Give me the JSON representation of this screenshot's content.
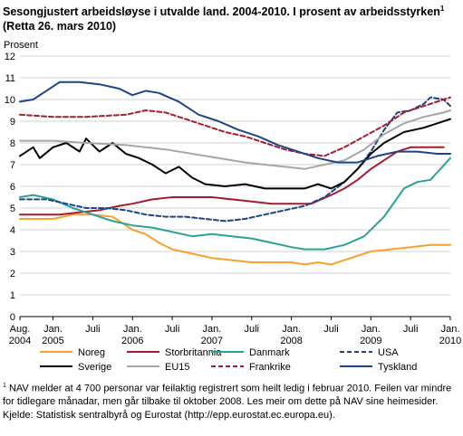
{
  "title": {
    "line1": "Sesongjustert arbeidsløyse i utvalde land. 2004-2010. I prosent av arbeidsstyrken",
    "footnote_mark": "1",
    "line2": "(Retta 26. mars 2010)"
  },
  "footnote": {
    "mark": "1",
    "text": "NAV melder at 4 700 personar var feilaktig registrert som heilt ledig i februar 2010. Feilen var mindre for tidlegare månadar, men går tilbake til oktober 2008. Les meir om dette på NAV sine heimesider."
  },
  "source": "Kjelde: Statistisk sentralbyrå og Eurostat (http://epp.eurostat.ec.europa.eu).",
  "colors": {
    "Noreg": "#f7a12a",
    "Sverige": "#000000",
    "Storbritannia": "#a51c30",
    "EU15": "#a6a6a6",
    "Danmark": "#2aa198",
    "Frankrike": "#a51c30",
    "USA": "#1c4587",
    "Tyskland": "#1c4587",
    "grid": "#d0d0d0",
    "axis": "#000000"
  },
  "chart_data": {
    "type": "line",
    "ylabel": "Prosent",
    "ylim": [
      0,
      12
    ],
    "yticks": [
      0,
      1,
      2,
      3,
      4,
      5,
      6,
      7,
      8,
      9,
      10,
      11,
      12
    ],
    "x_start": "2004-08",
    "x_end": "2010-01",
    "x_ticks": [
      {
        "line1": "Aug.",
        "line2": "2004",
        "x": "2004-08"
      },
      {
        "line1": "Jan.",
        "line2": "2005",
        "x": "2005-01"
      },
      {
        "line1": "Juli",
        "line2": "",
        "x": "2005-07"
      },
      {
        "line1": "Jan.",
        "line2": "2006",
        "x": "2006-01"
      },
      {
        "line1": "Juli",
        "line2": "",
        "x": "2006-07"
      },
      {
        "line1": "Jan.",
        "line2": "2007",
        "x": "2007-01"
      },
      {
        "line1": "Juli",
        "line2": "",
        "x": "2007-07"
      },
      {
        "line1": "Jan.",
        "line2": "2008",
        "x": "2008-01"
      },
      {
        "line1": "Juli",
        "line2": "",
        "x": "2008-07"
      },
      {
        "line1": "Jan.",
        "line2": "2009",
        "x": "2009-01"
      },
      {
        "line1": "Juli",
        "line2": "",
        "x": "2009-07"
      },
      {
        "line1": "Jan.",
        "line2": "2010",
        "x": "2010-01"
      }
    ],
    "grid": true,
    "legend_position": "bottom",
    "series": [
      {
        "name": "Noreg",
        "style": "solid",
        "color": "#f7a12a",
        "points": [
          [
            "2004-08",
            4.5
          ],
          [
            "2004-10",
            4.5
          ],
          [
            "2005-01",
            4.5
          ],
          [
            "2005-04",
            4.7
          ],
          [
            "2005-07",
            4.7
          ],
          [
            "2005-10",
            4.6
          ],
          [
            "2006-01",
            4.0
          ],
          [
            "2006-03",
            3.8
          ],
          [
            "2006-05",
            3.4
          ],
          [
            "2006-07",
            3.1
          ],
          [
            "2006-10",
            2.9
          ],
          [
            "2007-01",
            2.7
          ],
          [
            "2007-04",
            2.6
          ],
          [
            "2007-07",
            2.5
          ],
          [
            "2007-10",
            2.5
          ],
          [
            "2008-01",
            2.5
          ],
          [
            "2008-03",
            2.4
          ],
          [
            "2008-05",
            2.5
          ],
          [
            "2008-07",
            2.4
          ],
          [
            "2008-09",
            2.6
          ],
          [
            "2008-11",
            2.8
          ],
          [
            "2009-01",
            3.0
          ],
          [
            "2009-04",
            3.1
          ],
          [
            "2009-07",
            3.2
          ],
          [
            "2009-10",
            3.3
          ],
          [
            "2010-01",
            3.3
          ]
        ]
      },
      {
        "name": "Storbritannia",
        "style": "solid",
        "color": "#a51c30",
        "points": [
          [
            "2004-08",
            4.7
          ],
          [
            "2004-11",
            4.7
          ],
          [
            "2005-02",
            4.7
          ],
          [
            "2005-05",
            4.8
          ],
          [
            "2005-08",
            4.9
          ],
          [
            "2005-11",
            5.1
          ],
          [
            "2006-01",
            5.2
          ],
          [
            "2006-04",
            5.4
          ],
          [
            "2006-07",
            5.5
          ],
          [
            "2006-10",
            5.5
          ],
          [
            "2007-01",
            5.5
          ],
          [
            "2007-04",
            5.4
          ],
          [
            "2007-07",
            5.3
          ],
          [
            "2007-10",
            5.2
          ],
          [
            "2008-01",
            5.2
          ],
          [
            "2008-04",
            5.2
          ],
          [
            "2008-07",
            5.6
          ],
          [
            "2008-09",
            5.9
          ],
          [
            "2008-11",
            6.3
          ],
          [
            "2009-01",
            6.8
          ],
          [
            "2009-03",
            7.2
          ],
          [
            "2009-05",
            7.6
          ],
          [
            "2009-07",
            7.8
          ],
          [
            "2009-10",
            7.8
          ],
          [
            "2009-12",
            7.8
          ]
        ]
      },
      {
        "name": "Danmark",
        "style": "solid",
        "color": "#2aa198",
        "points": [
          [
            "2004-08",
            5.5
          ],
          [
            "2004-10",
            5.6
          ],
          [
            "2005-01",
            5.4
          ],
          [
            "2005-04",
            5.0
          ],
          [
            "2005-07",
            4.7
          ],
          [
            "2005-10",
            4.4
          ],
          [
            "2006-01",
            4.2
          ],
          [
            "2006-04",
            4.1
          ],
          [
            "2006-07",
            3.9
          ],
          [
            "2006-10",
            3.7
          ],
          [
            "2007-01",
            3.8
          ],
          [
            "2007-04",
            3.7
          ],
          [
            "2007-07",
            3.6
          ],
          [
            "2007-10",
            3.4
          ],
          [
            "2008-01",
            3.2
          ],
          [
            "2008-03",
            3.1
          ],
          [
            "2008-06",
            3.1
          ],
          [
            "2008-09",
            3.3
          ],
          [
            "2008-12",
            3.7
          ],
          [
            "2009-03",
            4.6
          ],
          [
            "2009-06",
            5.9
          ],
          [
            "2009-08",
            6.2
          ],
          [
            "2009-10",
            6.3
          ],
          [
            "2010-01",
            7.3
          ]
        ]
      },
      {
        "name": "USA",
        "style": "dashed",
        "color": "#1c4587",
        "points": [
          [
            "2004-08",
            5.4
          ],
          [
            "2004-12",
            5.4
          ],
          [
            "2005-03",
            5.2
          ],
          [
            "2005-06",
            5.0
          ],
          [
            "2005-09",
            5.0
          ],
          [
            "2005-12",
            4.9
          ],
          [
            "2006-03",
            4.7
          ],
          [
            "2006-06",
            4.6
          ],
          [
            "2006-09",
            4.6
          ],
          [
            "2006-12",
            4.5
          ],
          [
            "2007-03",
            4.4
          ],
          [
            "2007-06",
            4.5
          ],
          [
            "2007-09",
            4.7
          ],
          [
            "2007-12",
            4.9
          ],
          [
            "2008-03",
            5.1
          ],
          [
            "2008-06",
            5.5
          ],
          [
            "2008-09",
            6.2
          ],
          [
            "2008-11",
            6.8
          ],
          [
            "2009-01",
            7.6
          ],
          [
            "2009-03",
            8.6
          ],
          [
            "2009-05",
            9.4
          ],
          [
            "2009-07",
            9.5
          ],
          [
            "2009-09",
            9.8
          ],
          [
            "2009-10",
            10.1
          ],
          [
            "2009-12",
            10.0
          ],
          [
            "2010-01",
            9.7
          ]
        ]
      },
      {
        "name": "Sverige",
        "style": "solid",
        "color": "#000000",
        "points": [
          [
            "2004-08",
            7.4
          ],
          [
            "2004-10",
            7.8
          ],
          [
            "2004-11",
            7.3
          ],
          [
            "2005-01",
            7.8
          ],
          [
            "2005-03",
            8.0
          ],
          [
            "2005-05",
            7.6
          ],
          [
            "2005-06",
            8.2
          ],
          [
            "2005-08",
            7.6
          ],
          [
            "2005-10",
            8.0
          ],
          [
            "2005-12",
            7.5
          ],
          [
            "2006-02",
            7.3
          ],
          [
            "2006-04",
            7.0
          ],
          [
            "2006-06",
            6.6
          ],
          [
            "2006-08",
            6.9
          ],
          [
            "2006-10",
            6.4
          ],
          [
            "2006-12",
            6.1
          ],
          [
            "2007-03",
            6.0
          ],
          [
            "2007-06",
            6.1
          ],
          [
            "2007-09",
            5.9
          ],
          [
            "2007-12",
            5.9
          ],
          [
            "2008-03",
            5.9
          ],
          [
            "2008-05",
            6.1
          ],
          [
            "2008-07",
            5.9
          ],
          [
            "2008-09",
            6.2
          ],
          [
            "2008-11",
            6.8
          ],
          [
            "2009-01",
            7.5
          ],
          [
            "2009-03",
            8.0
          ],
          [
            "2009-06",
            8.5
          ],
          [
            "2009-09",
            8.7
          ],
          [
            "2009-11",
            8.9
          ],
          [
            "2010-01",
            9.1
          ]
        ]
      },
      {
        "name": "EU15",
        "style": "solid",
        "color": "#a6a6a6",
        "points": [
          [
            "2004-08",
            8.1
          ],
          [
            "2005-01",
            8.1
          ],
          [
            "2005-06",
            8.0
          ],
          [
            "2005-12",
            7.9
          ],
          [
            "2006-06",
            7.7
          ],
          [
            "2006-12",
            7.4
          ],
          [
            "2007-06",
            7.1
          ],
          [
            "2007-12",
            6.9
          ],
          [
            "2008-03",
            6.8
          ],
          [
            "2008-06",
            7.0
          ],
          [
            "2008-09",
            7.2
          ],
          [
            "2008-12",
            7.7
          ],
          [
            "2009-03",
            8.4
          ],
          [
            "2009-06",
            8.9
          ],
          [
            "2009-09",
            9.2
          ],
          [
            "2009-12",
            9.4
          ],
          [
            "2010-01",
            9.5
          ]
        ]
      },
      {
        "name": "Frankrike",
        "style": "dashed",
        "color": "#a51c30",
        "points": [
          [
            "2004-08",
            9.3
          ],
          [
            "2005-01",
            9.2
          ],
          [
            "2005-06",
            9.2
          ],
          [
            "2005-12",
            9.3
          ],
          [
            "2006-03",
            9.5
          ],
          [
            "2006-06",
            9.4
          ],
          [
            "2006-09",
            9.1
          ],
          [
            "2006-12",
            8.8
          ],
          [
            "2007-03",
            8.5
          ],
          [
            "2007-06",
            8.3
          ],
          [
            "2007-09",
            8.0
          ],
          [
            "2007-12",
            7.7
          ],
          [
            "2008-03",
            7.5
          ],
          [
            "2008-06",
            7.4
          ],
          [
            "2008-09",
            7.8
          ],
          [
            "2008-12",
            8.3
          ],
          [
            "2009-03",
            8.8
          ],
          [
            "2009-06",
            9.4
          ],
          [
            "2009-09",
            9.7
          ],
          [
            "2009-12",
            10.0
          ],
          [
            "2010-01",
            10.1
          ]
        ]
      },
      {
        "name": "Tyskland",
        "style": "solid",
        "color": "#1c4587",
        "points": [
          [
            "2004-08",
            9.9
          ],
          [
            "2004-10",
            10.0
          ],
          [
            "2004-12",
            10.4
          ],
          [
            "2005-02",
            10.8
          ],
          [
            "2005-05",
            10.8
          ],
          [
            "2005-08",
            10.7
          ],
          [
            "2005-11",
            10.5
          ],
          [
            "2006-01",
            10.2
          ],
          [
            "2006-03",
            10.4
          ],
          [
            "2006-05",
            10.3
          ],
          [
            "2006-08",
            9.9
          ],
          [
            "2006-11",
            9.3
          ],
          [
            "2007-02",
            9.0
          ],
          [
            "2007-05",
            8.6
          ],
          [
            "2007-08",
            8.3
          ],
          [
            "2007-11",
            7.9
          ],
          [
            "2008-02",
            7.6
          ],
          [
            "2008-05",
            7.3
          ],
          [
            "2008-08",
            7.1
          ],
          [
            "2008-11",
            7.1
          ],
          [
            "2009-02",
            7.4
          ],
          [
            "2009-05",
            7.6
          ],
          [
            "2009-08",
            7.6
          ],
          [
            "2009-11",
            7.5
          ],
          [
            "2010-01",
            7.5
          ]
        ]
      }
    ],
    "legend": [
      {
        "name": "Noreg",
        "style": "solid",
        "color": "#f7a12a"
      },
      {
        "name": "Storbritannia",
        "style": "solid",
        "color": "#a51c30"
      },
      {
        "name": "Danmark",
        "style": "solid",
        "color": "#2aa198"
      },
      {
        "name": "USA",
        "style": "dashed",
        "color": "#1c4587"
      },
      {
        "name": "Sverige",
        "style": "solid",
        "color": "#000000"
      },
      {
        "name": "EU15",
        "style": "solid",
        "color": "#a6a6a6"
      },
      {
        "name": "Frankrike",
        "style": "dashed",
        "color": "#a51c30"
      },
      {
        "name": "Tyskland",
        "style": "solid",
        "color": "#1c4587"
      }
    ]
  }
}
